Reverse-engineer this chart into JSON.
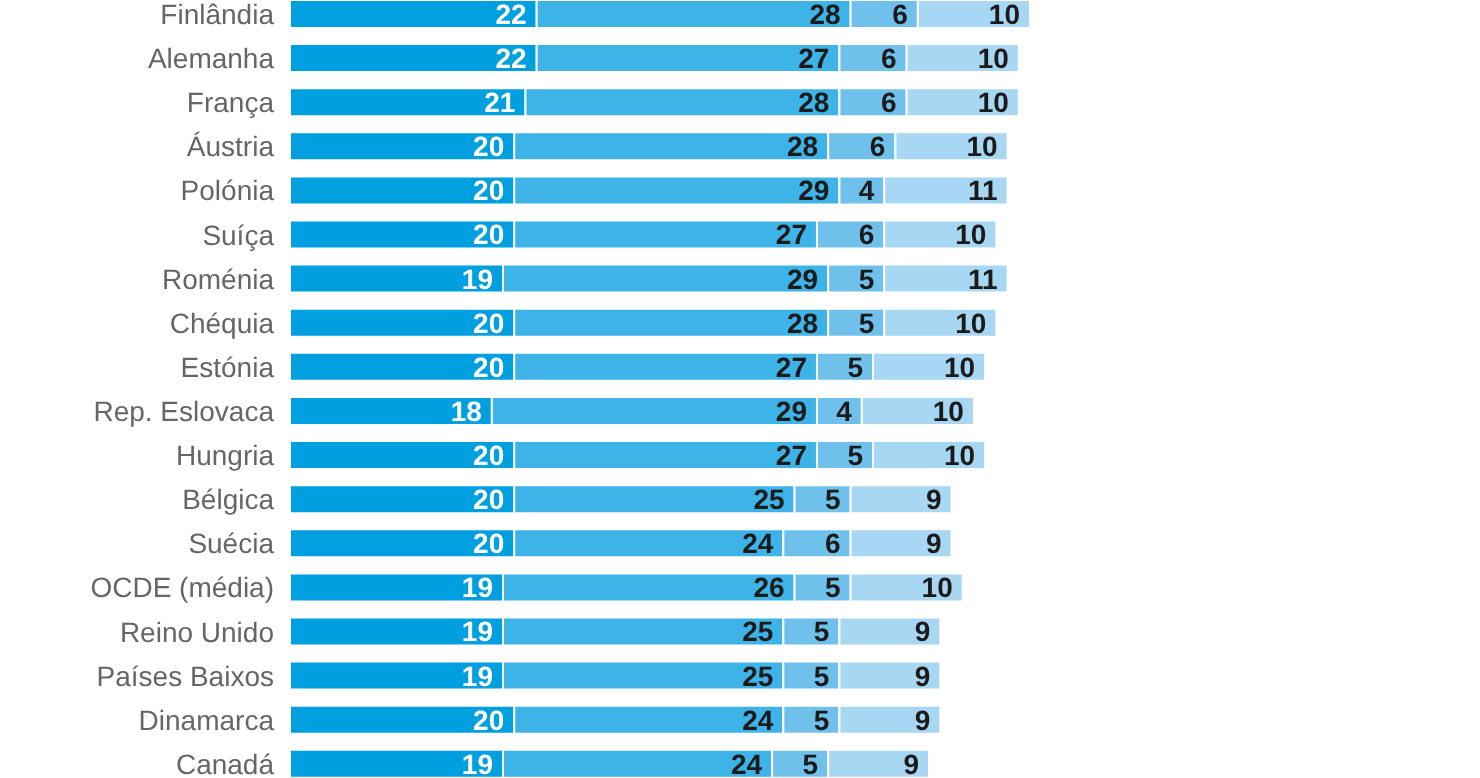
{
  "chart_data": {
    "type": "bar",
    "orientation": "horizontal",
    "stacked": true,
    "data_labels": true,
    "tick_labels": "y",
    "categories": [
      "Finlândia",
      "Alemanha",
      "França",
      "Áustria",
      "Polónia",
      "Suíça",
      "Roménia",
      "Chéquia",
      "Estónia",
      "Rep. Eslovaca",
      "Hungria",
      "Bélgica",
      "Suécia",
      "OCDE (média)",
      "Reino Unido",
      "Países Baixos",
      "Dinamarca",
      "Canadá"
    ],
    "series": [
      {
        "color": "#009fdf",
        "values": [
          22,
          22,
          21,
          20,
          20,
          20,
          19,
          20,
          20,
          18,
          20,
          20,
          20,
          19,
          19,
          19,
          20,
          19
        ]
      },
      {
        "color": "#3db3e8",
        "values": [
          28,
          27,
          28,
          28,
          29,
          27,
          29,
          28,
          27,
          29,
          27,
          25,
          24,
          26,
          25,
          25,
          24,
          24
        ]
      },
      {
        "color": "#6fc1ec",
        "values": [
          6,
          6,
          6,
          6,
          4,
          6,
          5,
          5,
          5,
          4,
          5,
          5,
          6,
          5,
          5,
          5,
          5,
          5
        ]
      },
      {
        "color": "#a8d7f3",
        "values": [
          10,
          10,
          10,
          10,
          11,
          10,
          11,
          10,
          10,
          10,
          10,
          9,
          9,
          10,
          9,
          9,
          9,
          9
        ]
      }
    ]
  }
}
